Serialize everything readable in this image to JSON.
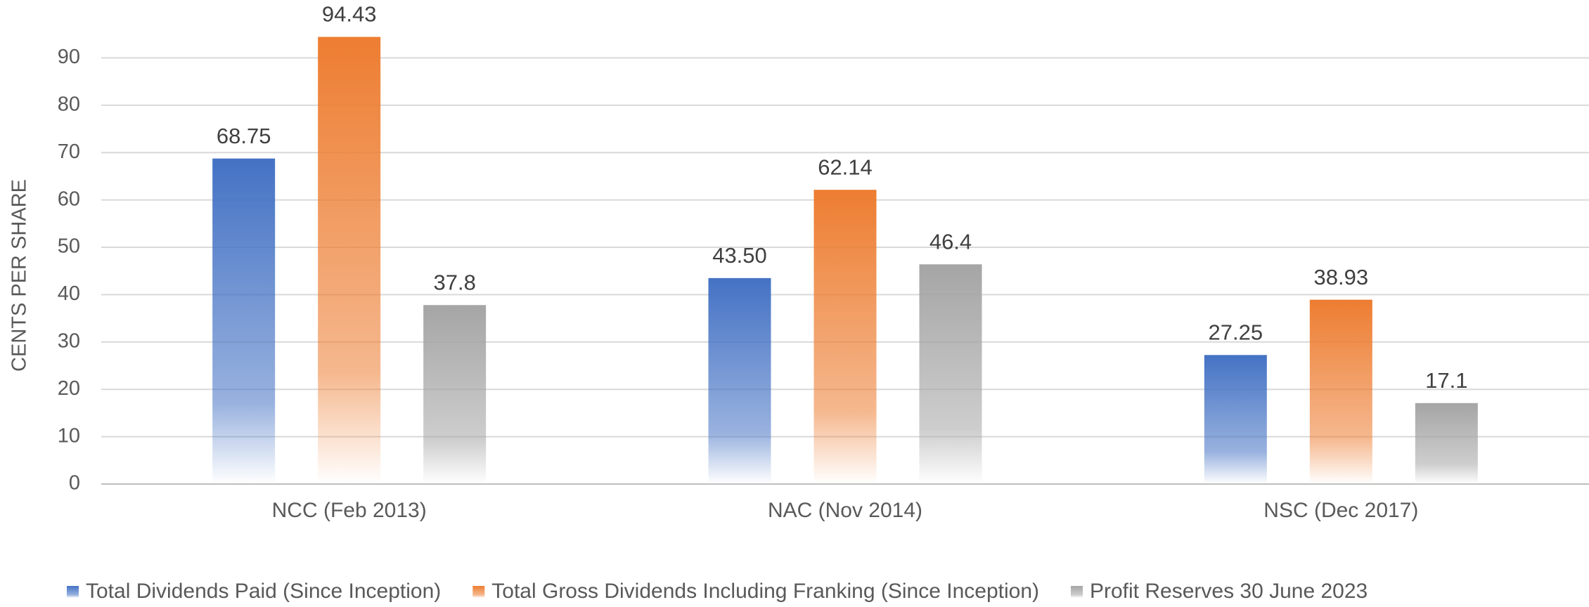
{
  "chart_data": {
    "type": "bar",
    "y_label": "CENTS PER SHARE",
    "categories": [
      "NCC (Feb 2013)",
      "NAC (Nov 2014)",
      "NSC (Dec 2017)"
    ],
    "series": [
      {
        "name": "Total Dividends Paid (Since Inception)",
        "color": "#4472c4",
        "values": [
          68.75,
          43.5,
          27.25
        ],
        "value_labels": [
          "68.75",
          "43.50",
          "27.25"
        ]
      },
      {
        "name": "Total Gross Dividends Including Franking (Since Inception)",
        "color": "#ed7d31",
        "values": [
          94.43,
          62.14,
          38.93
        ],
        "value_labels": [
          "94.43",
          "62.14",
          "38.93"
        ]
      },
      {
        "name": "Profit Reserves 30 June 2023",
        "color": "#a5a5a5",
        "values": [
          37.8,
          46.4,
          17.1
        ],
        "value_labels": [
          "37.8",
          "46.4",
          "17.1"
        ]
      }
    ],
    "ylim": [
      0,
      100
    ],
    "yticks": [
      0,
      10,
      20,
      30,
      40,
      50,
      60,
      70,
      80,
      90
    ],
    "grid": true,
    "legend": "bottom"
  }
}
